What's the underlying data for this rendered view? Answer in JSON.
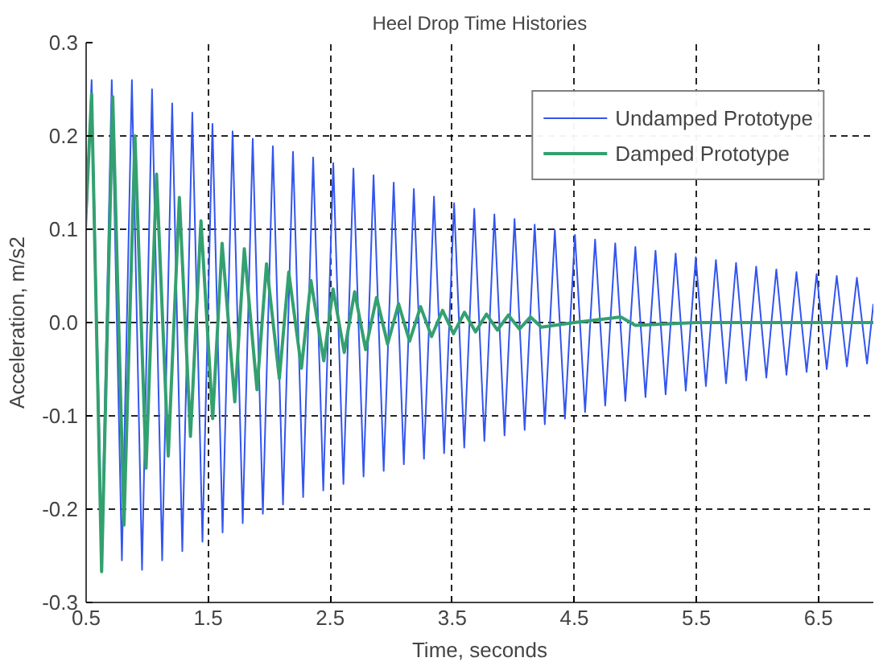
{
  "chart_data": {
    "type": "line",
    "title": "Heel Drop Time Histories",
    "xlabel": "Time, seconds",
    "ylabel": "Acceleration, m/s2",
    "xlim": [
      0.5,
      6.95
    ],
    "ylim": [
      -0.3,
      0.3
    ],
    "xticks": [
      0.5,
      1.5,
      2.5,
      3.5,
      4.5,
      5.5,
      6.5
    ],
    "yticks": [
      {
        "value": -0.3,
        "label": "-0.3"
      },
      {
        "value": -0.2,
        "label": "-0.2"
      },
      {
        "value": -0.1,
        "label": "-0.1"
      },
      {
        "value": 0,
        "label": "0.0"
      },
      {
        "value": 0.1,
        "label": "0.1"
      },
      {
        "value": 0.2,
        "label": "0.2"
      },
      {
        "value": 0.3,
        "label": "0.3"
      }
    ],
    "grid": true,
    "legend": "top right",
    "line_style": "solid",
    "marker": "none",
    "series": [
      {
        "name": "Undamped Prototype",
        "color": "#3355ee",
        "x": [
          0.5,
          0.545,
          0.628,
          0.71,
          0.793,
          0.875,
          0.958,
          1.04,
          1.123,
          1.205,
          1.288,
          1.37,
          1.453,
          1.535,
          1.618,
          1.7,
          1.783,
          1.865,
          1.948,
          2.03,
          2.113,
          2.195,
          2.278,
          2.36,
          2.443,
          2.525,
          2.608,
          2.69,
          2.773,
          2.855,
          2.938,
          3.02,
          3.103,
          3.185,
          3.268,
          3.35,
          3.433,
          3.515,
          3.598,
          3.68,
          3.763,
          3.845,
          3.928,
          4.01,
          4.093,
          4.175,
          4.258,
          4.34,
          4.423,
          4.505,
          4.588,
          4.67,
          4.753,
          4.835,
          4.918,
          5.0,
          5.083,
          5.165,
          5.248,
          5.33,
          5.413,
          5.495,
          5.578,
          5.66,
          5.743,
          5.825,
          5.908,
          5.99,
          6.073,
          6.155,
          6.238,
          6.32,
          6.403,
          6.485,
          6.568,
          6.65,
          6.733,
          6.815,
          6.898,
          6.95
        ],
        "values": [
          0.1,
          0.26,
          -0.24,
          0.26,
          -0.255,
          0.26,
          -0.265,
          0.25,
          -0.255,
          0.235,
          -0.245,
          0.225,
          -0.235,
          0.213,
          -0.225,
          0.205,
          -0.215,
          0.197,
          -0.205,
          0.189,
          -0.195,
          0.183,
          -0.187,
          0.177,
          -0.18,
          0.171,
          -0.173,
          0.165,
          -0.165,
          0.158,
          -0.159,
          0.15,
          -0.152,
          0.143,
          -0.146,
          0.135,
          -0.14,
          0.128,
          -0.134,
          0.122,
          -0.127,
          0.116,
          -0.121,
          0.111,
          -0.115,
          0.105,
          -0.109,
          0.099,
          -0.103,
          0.094,
          -0.096,
          0.089,
          -0.089,
          0.085,
          -0.084,
          0.081,
          -0.08,
          0.077,
          -0.077,
          0.074,
          -0.073,
          0.07,
          -0.068,
          0.067,
          -0.065,
          0.064,
          -0.062,
          0.06,
          -0.059,
          0.057,
          -0.056,
          0.054,
          -0.053,
          0.052,
          -0.05,
          0.05,
          -0.047,
          0.048,
          -0.044,
          0.02
        ]
      },
      {
        "name": "Damped Prototype",
        "color": "#33a070",
        "x": [
          0.5,
          0.545,
          0.627,
          0.718,
          0.81,
          0.9,
          0.991,
          1.077,
          1.173,
          1.264,
          1.355,
          1.441,
          1.537,
          1.614,
          1.718,
          1.796,
          1.9,
          1.978,
          2.083,
          2.16,
          2.264,
          2.342,
          2.447,
          2.523,
          2.615,
          2.7,
          2.79,
          2.88,
          2.97,
          3.06,
          3.15,
          3.24,
          3.33,
          3.42,
          3.51,
          3.6,
          3.69,
          3.78,
          3.87,
          3.96,
          4.05,
          4.14,
          4.23,
          4.5,
          4.88,
          5.0,
          5.5,
          6.95
        ],
        "values": [
          0.12,
          0.245,
          -0.267,
          0.242,
          -0.217,
          0.2,
          -0.156,
          0.159,
          -0.143,
          0.134,
          -0.122,
          0.109,
          -0.103,
          0.085,
          -0.085,
          0.079,
          -0.072,
          0.063,
          -0.06,
          0.054,
          -0.049,
          0.045,
          -0.041,
          0.036,
          -0.032,
          0.033,
          -0.029,
          0.027,
          -0.023,
          0.02,
          -0.02,
          0.017,
          -0.015,
          0.013,
          -0.012,
          0.011,
          -0.01,
          0.009,
          -0.008,
          0.008,
          -0.007,
          0.006,
          -0.005,
          0.0,
          0.006,
          -0.003,
          0.0,
          0.0
        ]
      }
    ]
  }
}
